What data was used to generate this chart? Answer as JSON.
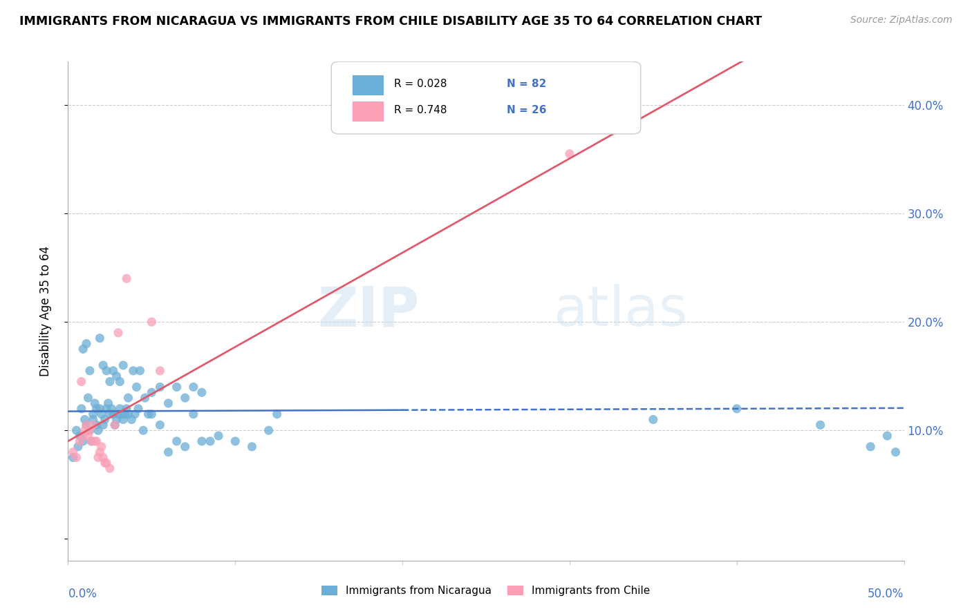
{
  "title": "IMMIGRANTS FROM NICARAGUA VS IMMIGRANTS FROM CHILE DISABILITY AGE 35 TO 64 CORRELATION CHART",
  "source": "Source: ZipAtlas.com",
  "ylabel": "Disability Age 35 to 64",
  "xmin": 0.0,
  "xmax": 0.5,
  "ymin": -0.02,
  "ymax": 0.44,
  "legend_r1": "R = 0.028",
  "legend_n1": "N = 82",
  "legend_r2": "R = 0.748",
  "legend_n2": "N = 26",
  "color_nicaragua": "#6baed6",
  "color_chile": "#fa9fb5",
  "color_line_nicaragua": "#4472c4",
  "color_line_chile": "#e05a6e",
  "color_axis_text": "#4472c4",
  "watermark": "ZIPatlas",
  "nicaragua_x": [
    0.003,
    0.005,
    0.006,
    0.007,
    0.008,
    0.009,
    0.01,
    0.011,
    0.012,
    0.013,
    0.014,
    0.015,
    0.016,
    0.017,
    0.018,
    0.019,
    0.02,
    0.021,
    0.022,
    0.023,
    0.024,
    0.025,
    0.026,
    0.027,
    0.028,
    0.029,
    0.03,
    0.031,
    0.032,
    0.033,
    0.034,
    0.035,
    0.036,
    0.038,
    0.04,
    0.042,
    0.045,
    0.048,
    0.05,
    0.055,
    0.06,
    0.065,
    0.07,
    0.075,
    0.08,
    0.009,
    0.011,
    0.013,
    0.015,
    0.017,
    0.019,
    0.021,
    0.023,
    0.025,
    0.027,
    0.029,
    0.031,
    0.033,
    0.036,
    0.039,
    0.041,
    0.043,
    0.046,
    0.05,
    0.055,
    0.06,
    0.065,
    0.07,
    0.075,
    0.08,
    0.085,
    0.09,
    0.1,
    0.11,
    0.12,
    0.125,
    0.35,
    0.4,
    0.45,
    0.48,
    0.49,
    0.495
  ],
  "nicaragua_y": [
    0.075,
    0.1,
    0.085,
    0.095,
    0.12,
    0.09,
    0.11,
    0.105,
    0.13,
    0.1,
    0.09,
    0.115,
    0.125,
    0.105,
    0.1,
    0.12,
    0.115,
    0.105,
    0.11,
    0.12,
    0.125,
    0.115,
    0.12,
    0.115,
    0.105,
    0.11,
    0.115,
    0.12,
    0.115,
    0.11,
    0.115,
    0.12,
    0.115,
    0.11,
    0.115,
    0.12,
    0.1,
    0.115,
    0.115,
    0.105,
    0.08,
    0.09,
    0.085,
    0.115,
    0.09,
    0.175,
    0.18,
    0.155,
    0.11,
    0.12,
    0.185,
    0.16,
    0.155,
    0.145,
    0.155,
    0.15,
    0.145,
    0.16,
    0.13,
    0.155,
    0.14,
    0.155,
    0.13,
    0.135,
    0.14,
    0.125,
    0.14,
    0.13,
    0.14,
    0.135,
    0.09,
    0.095,
    0.09,
    0.085,
    0.1,
    0.115,
    0.11,
    0.12,
    0.105,
    0.085,
    0.095,
    0.08
  ],
  "chile_x": [
    0.003,
    0.005,
    0.007,
    0.008,
    0.009,
    0.01,
    0.011,
    0.012,
    0.013,
    0.014,
    0.015,
    0.016,
    0.017,
    0.018,
    0.019,
    0.02,
    0.021,
    0.022,
    0.023,
    0.025,
    0.028,
    0.03,
    0.035,
    0.05,
    0.055,
    0.3
  ],
  "chile_y": [
    0.08,
    0.075,
    0.09,
    0.145,
    0.095,
    0.1,
    0.105,
    0.095,
    0.1,
    0.09,
    0.105,
    0.09,
    0.09,
    0.075,
    0.08,
    0.085,
    0.075,
    0.07,
    0.07,
    0.065,
    0.105,
    0.19,
    0.24,
    0.2,
    0.155,
    0.355
  ]
}
